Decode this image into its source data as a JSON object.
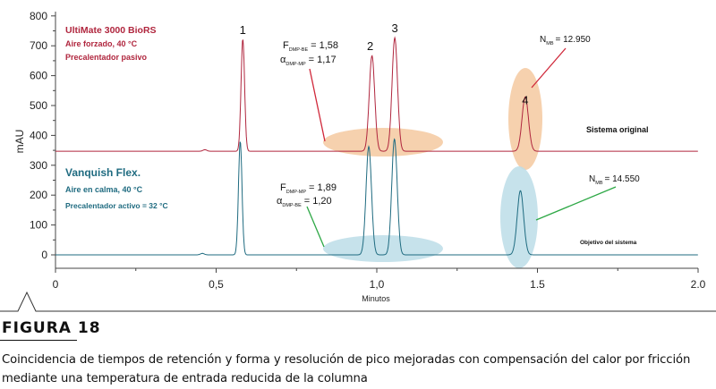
{
  "figure": {
    "label": "FIGURA 18",
    "caption": "Coincidencia de tiempos de retención y forma y resolución de pico mejoradas con compensación del calor por fricción mediante una temperatura de entrada reducida de la columna"
  },
  "chart_data": {
    "type": "line",
    "xlabel": "Minutos",
    "ylabel": "mAU",
    "xlim": [
      0,
      2.0
    ],
    "ylim": [
      -30,
      800
    ],
    "x_ticks": [
      0,
      0.5,
      1.0,
      1.5,
      2.0
    ],
    "x_tick_labels": [
      "0",
      "0,5",
      "1,0",
      "1.5",
      "2.0"
    ],
    "y_ticks": [
      0,
      100,
      200,
      300,
      400,
      500,
      600,
      700,
      800
    ],
    "y_tick_labels": [
      "0",
      "100",
      "200",
      "300",
      "400",
      "500",
      "600",
      "700",
      "800"
    ],
    "grid": false,
    "series": [
      {
        "key": "top",
        "name": "Sistema original",
        "color": "#b0263e",
        "baseline": 347,
        "info": [
          "UltiMate 3000 BioRS",
          "Aire forzado, 40 °C",
          "Precalentador pasivo"
        ],
        "peaks": [
          {
            "label": "",
            "rt": 0.465,
            "height": 5,
            "sigma": 0.006
          },
          {
            "label": "1",
            "rt": 0.583,
            "height": 375,
            "sigma": 0.0055
          },
          {
            "label": "2",
            "rt": 0.985,
            "height": 320,
            "sigma": 0.0085
          },
          {
            "label": "3",
            "rt": 1.056,
            "height": 380,
            "sigma": 0.0085
          },
          {
            "label": "4",
            "rt": 1.462,
            "height": 182,
            "sigma": 0.01
          }
        ]
      },
      {
        "key": "bottom",
        "name": "Objetivo del sistema",
        "color": "#1f6b80",
        "baseline": 0,
        "info": [
          "Vanquish Flex.",
          "Aire en calma, 40 °C",
          "Precalentador activo = 32 °C"
        ],
        "peaks": [
          {
            "label": "",
            "rt": 0.457,
            "height": 5,
            "sigma": 0.006
          },
          {
            "label": "",
            "rt": 0.575,
            "height": 380,
            "sigma": 0.0055
          },
          {
            "label": "",
            "rt": 0.975,
            "height": 363,
            "sigma": 0.0085
          },
          {
            "label": "",
            "rt": 1.055,
            "height": 388,
            "sigma": 0.0085
          },
          {
            "label": "",
            "rt": 1.447,
            "height": 215,
            "sigma": 0.01
          }
        ]
      }
    ],
    "annotations": {
      "top": {
        "res_F_main": "F",
        "res_F_sub": "DMP-BE",
        "res_F_value": "= 1,58",
        "res_a_main": "α",
        "res_a_sub": "DMP-MP",
        "res_a_value": "= 1,17",
        "nmb_main": "N",
        "nmb_sub": "MB",
        "nmb_value": "= 12.950"
      },
      "bottom": {
        "res_F_main": "F",
        "res_F_sub": "DMP-MP",
        "res_F_value": "= 1,89",
        "res_a_main": "α",
        "res_a_sub": "DMP-BE",
        "res_a_value": "= 1,20",
        "nmb_main": "N",
        "nmb_sub": "MB",
        "nmb_value": "= 14.550"
      }
    },
    "colors": {
      "orange_fill": "#f5c9a0",
      "blue_fill": "#bcdde8",
      "red_line": "#d0283a",
      "green_line": "#2ea846"
    }
  }
}
